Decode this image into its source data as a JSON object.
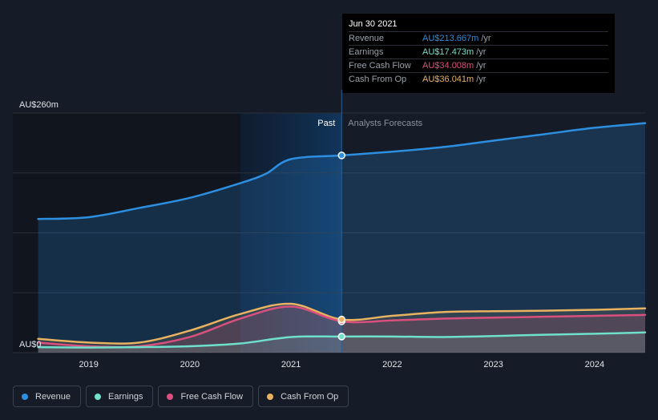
{
  "tooltip": {
    "date": "Jun 30 2021",
    "rows": [
      {
        "label": "Revenue",
        "value": "AU$213.667m",
        "unit": "/yr",
        "color": "#2d8fe0"
      },
      {
        "label": "Earnings",
        "value": "AU$17.473m",
        "unit": "/yr",
        "color": "#6fe0cb"
      },
      {
        "label": "Free Cash Flow",
        "value": "AU$34.008m",
        "unit": "/yr",
        "color": "#d9507d"
      },
      {
        "label": "Cash From Op",
        "value": "AU$36.041m",
        "unit": "/yr",
        "color": "#e8b260"
      }
    ]
  },
  "section_labels": {
    "past": "Past",
    "forecast": "Analysts Forecasts"
  },
  "legend": [
    {
      "label": "Revenue",
      "color": "#2d8fe0"
    },
    {
      "label": "Earnings",
      "color": "#6fe0cb"
    },
    {
      "label": "Free Cash Flow",
      "color": "#d9507d"
    },
    {
      "label": "Cash From Op",
      "color": "#e8b260"
    }
  ],
  "chart_data": {
    "type": "area",
    "ylim": [
      0,
      260
    ],
    "y_tick_labels": [
      {
        "value": 260,
        "label": "AU$260m"
      },
      {
        "value": 0,
        "label": "AU$0"
      }
    ],
    "x_tick_labels": [
      "2019",
      "2020",
      "2021",
      "2022",
      "2023",
      "2024"
    ],
    "x_ticks": [
      2019,
      2020,
      2021,
      2022,
      2023,
      2024
    ],
    "xlim": [
      2018.25,
      2024.5
    ],
    "past_end": 2021.5,
    "highlight_start": 2020.5,
    "grid": true,
    "series": [
      {
        "name": "Revenue",
        "color": "#2d8fe0",
        "x": [
          2018.5,
          2019.0,
          2019.5,
          2020.0,
          2020.5,
          2020.75,
          2021.0,
          2021.5,
          2022.0,
          2022.5,
          2023.0,
          2023.5,
          2024.0,
          2024.5
        ],
        "y": [
          145,
          147,
          157,
          168,
          184,
          194,
          210,
          214,
          218,
          223,
          230,
          237,
          244,
          249
        ]
      },
      {
        "name": "Earnings",
        "color": "#6fe0cb",
        "x": [
          2018.5,
          2019.0,
          2019.5,
          2020.0,
          2020.5,
          2021.0,
          2021.5,
          2022.0,
          2022.5,
          2023.0,
          2023.5,
          2024.0,
          2024.5
        ],
        "y": [
          6,
          5.5,
          6,
          7,
          10,
          17,
          17.5,
          17.5,
          17,
          18,
          19.5,
          20.5,
          22
        ]
      },
      {
        "name": "Free Cash Flow",
        "color": "#d9507d",
        "x": [
          2018.5,
          2019.0,
          2019.5,
          2020.0,
          2020.5,
          2021.0,
          2021.5,
          2022.0,
          2022.5,
          2023.0,
          2023.5,
          2024.0,
          2024.5
        ],
        "y": [
          11,
          7,
          7,
          17,
          37,
          50,
          34,
          35,
          37,
          38,
          39,
          40,
          41
        ]
      },
      {
        "name": "Cash From Op",
        "color": "#e8b260",
        "x": [
          2018.5,
          2019.0,
          2019.5,
          2020.0,
          2020.5,
          2021.0,
          2021.5,
          2022.0,
          2022.5,
          2023.0,
          2023.5,
          2024.0,
          2024.5
        ],
        "y": [
          15,
          11,
          11,
          24,
          42,
          53,
          36,
          40,
          44,
          45,
          45.5,
          46.5,
          48
        ]
      }
    ]
  }
}
